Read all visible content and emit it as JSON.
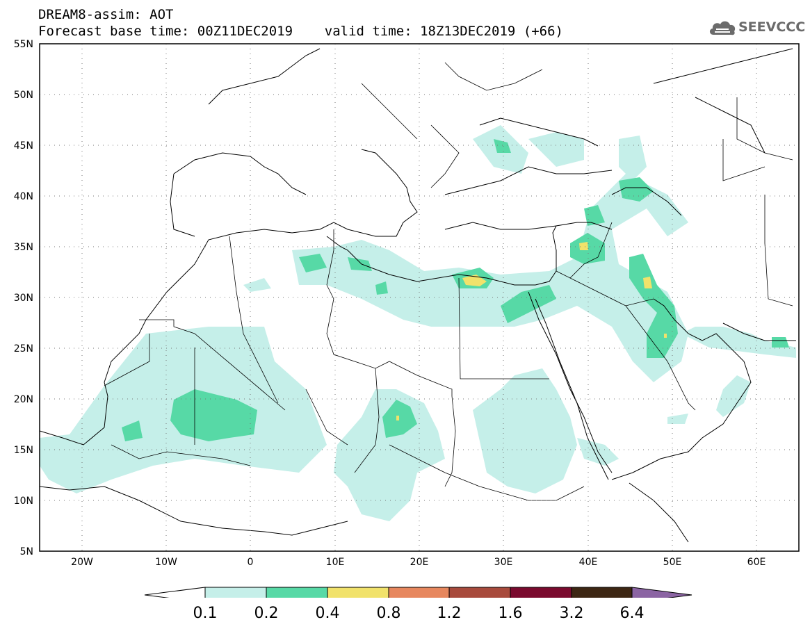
{
  "header": {
    "line1": "DREAM8-assim: AOT",
    "line2": "Forecast base time: 00Z11DEC2019    valid time: 18Z13DEC2019 (+66)"
  },
  "logo": {
    "text": "SEEVCCC",
    "icon": "cloud-icon"
  },
  "map": {
    "extent": {
      "lon": [
        -25,
        65
      ],
      "lat": [
        5,
        55
      ]
    },
    "lat_labels": [
      "55N",
      "50N",
      "45N",
      "40N",
      "35N",
      "30N",
      "25N",
      "20N",
      "15N",
      "10N",
      "5N"
    ],
    "lon_labels": [
      "20W",
      "10W",
      "0",
      "10E",
      "20E",
      "30E",
      "40E",
      "50E",
      "60E"
    ]
  },
  "colorbar": {
    "labels": [
      "0.1",
      "0.2",
      "0.4",
      "0.8",
      "1.2",
      "1.6",
      "3.2",
      "6.4"
    ],
    "colors": [
      "#ffffff",
      "#c5efe9",
      "#57d9a6",
      "#f1e26b",
      "#e7875e",
      "#a84a3c",
      "#7a0a2e",
      "#3d2613",
      "#8b64a3"
    ]
  }
}
